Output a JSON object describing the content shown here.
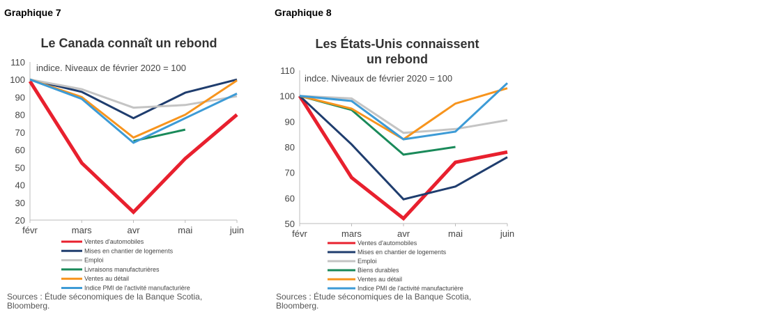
{
  "chart_data": [
    {
      "type": "line",
      "header": "Graphique 7",
      "title": "Le Canada connaît un rebond",
      "subtitle": "indice. Niveaux de février 2020 = 100",
      "categories": [
        "févr",
        "mars",
        "avr",
        "mai",
        "juin"
      ],
      "ylim": [
        20,
        110
      ],
      "yticks": [
        20,
        30,
        40,
        50,
        60,
        70,
        80,
        90,
        100,
        110
      ],
      "series": [
        {
          "name": "Ventes d'automobiles",
          "color": "#e8202e",
          "width": 5,
          "values": [
            99,
            52.5,
            24.5,
            55,
            80
          ]
        },
        {
          "name": "Mises en chantier de logements",
          "color": "#1f3d6e",
          "width": 3,
          "values": [
            100,
            93,
            78,
            92.5,
            100
          ]
        },
        {
          "name": "Emploi",
          "color": "#c4c4c4",
          "width": 3,
          "values": [
            100,
            94.5,
            84,
            85.5,
            90.5
          ]
        },
        {
          "name": "Livraisons manufacturières",
          "color": "#1a8a5a",
          "width": 3,
          "values": [
            null,
            null,
            65,
            71.5,
            null
          ]
        },
        {
          "name": "Ventes au détail",
          "color": "#f7941d",
          "width": 3,
          "values": [
            100,
            90,
            67,
            80,
            99.5
          ]
        },
        {
          "name": "Indice PMI de l'activité manufacturière",
          "color": "#3d9bd6",
          "width": 3,
          "values": [
            100,
            89,
            64,
            78,
            92
          ]
        }
      ],
      "source": "Sources : Étude séconomiques de la Banque Scotia, Bloomberg."
    },
    {
      "type": "line",
      "header": "Graphique 8",
      "title": "Les États-Unis connaissent un rebond",
      "subtitle": "indce. Niveaux de février 2020 = 100",
      "categories": [
        "févr",
        "mars",
        "avr",
        "mai",
        "juin"
      ],
      "ylim": [
        50,
        110
      ],
      "yticks": [
        50,
        60,
        70,
        80,
        90,
        100,
        110
      ],
      "series": [
        {
          "name": "Ventes d'automobiles",
          "color": "#e8202e",
          "width": 5,
          "values": [
            100,
            68,
            52,
            74,
            78
          ]
        },
        {
          "name": "Mises en chantier de logements",
          "color": "#1f3d6e",
          "width": 3,
          "values": [
            100,
            81,
            59.5,
            64.5,
            76
          ]
        },
        {
          "name": "Emploi",
          "color": "#c4c4c4",
          "width": 3,
          "values": [
            100,
            99,
            85.5,
            87,
            90.5
          ]
        },
        {
          "name": "Biens durables",
          "color": "#1a8a5a",
          "width": 3,
          "values": [
            100,
            94.5,
            77,
            80,
            null
          ]
        },
        {
          "name": "Ventes au détail",
          "color": "#f7941d",
          "width": 3,
          "values": [
            100,
            95,
            83,
            97,
            103
          ]
        },
        {
          "name": "Indice PMI de l'activité manufacturière",
          "color": "#3d9bd6",
          "width": 3,
          "values": [
            100,
            98,
            83,
            86,
            105
          ]
        }
      ],
      "source": "Sources : Étude séconomiques de la Banque Scotia, Bloomberg."
    }
  ]
}
